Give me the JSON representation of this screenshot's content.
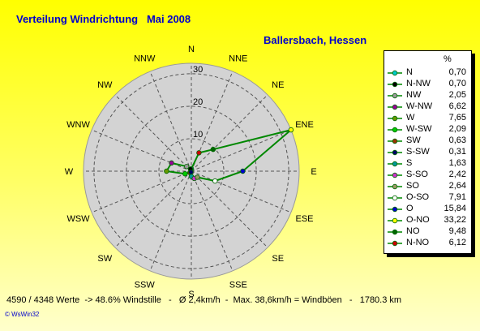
{
  "header": {
    "title": "Verteilung Windrichtung   Mai 2008",
    "location": "Ballersbach, Hessen"
  },
  "chart_data": {
    "type": "radar",
    "title": "Verteilung Windrichtung   Mai 2008",
    "subtitle": "Ballersbach, Hessen",
    "unit": "%",
    "r_ticks": [
      10,
      20,
      30
    ],
    "r_max": 33.22,
    "grid": true,
    "directions": [
      "N",
      "NNE",
      "NE",
      "ENE",
      "E",
      "ESE",
      "SE",
      "SSE",
      "S",
      "SSW",
      "SW",
      "WSW",
      "W",
      "WNW",
      "NW",
      "NNW"
    ],
    "series": [
      {
        "name": "N",
        "value": 0.7,
        "color": "#00cccc",
        "dir": "N"
      },
      {
        "name": "N-NW",
        "value": 0.7,
        "color": "#000000",
        "dir": "NNW"
      },
      {
        "name": "NW",
        "value": 2.05,
        "color": "#999999",
        "dir": "NW"
      },
      {
        "name": "W-NW",
        "value": 6.62,
        "color": "#990099",
        "dir": "WNW"
      },
      {
        "name": "W",
        "value": 7.65,
        "color": "#669900",
        "dir": "W"
      },
      {
        "name": "W-SW",
        "value": 2.09,
        "color": "#00cc00",
        "dir": "WSW"
      },
      {
        "name": "SW",
        "value": 0.63,
        "color": "#993300",
        "dir": "SW"
      },
      {
        "name": "S-SW",
        "value": 0.31,
        "color": "#000066",
        "dir": "SSW"
      },
      {
        "name": "S",
        "value": 1.63,
        "color": "#009999",
        "dir": "S"
      },
      {
        "name": "S-SO",
        "value": 2.42,
        "color": "#cc33cc",
        "dir": "SSE"
      },
      {
        "name": "SO",
        "value": 2.64,
        "color": "#999966",
        "dir": "SE"
      },
      {
        "name": "O-SO",
        "value": 7.91,
        "color": "#ffffff",
        "dir": "ESE"
      },
      {
        "name": "O",
        "value": 15.84,
        "color": "#0000cc",
        "dir": "E"
      },
      {
        "name": "O-NO",
        "value": 33.22,
        "color": "#ffff00",
        "dir": "ENE"
      },
      {
        "name": "NO",
        "value": 9.48,
        "color": "#006600",
        "dir": "NE"
      },
      {
        "name": "N-NO",
        "value": 6.12,
        "color": "#cc0000",
        "dir": "NNE"
      }
    ],
    "line_color": "#008800"
  },
  "legend": {
    "header": "%",
    "values_text": [
      "0,70",
      "0,70",
      "2,05",
      "6,62",
      "7,65",
      "2,09",
      "0,63",
      "0,31",
      "1,63",
      "2,42",
      "2,64",
      "7,91",
      "15,84",
      "33,22",
      "9,48",
      "6,12"
    ]
  },
  "footer": {
    "stats": "4590 / 4348 Werte  -> 48.6% Windstille   -   Ø 2,4km/h  -  Max. 38,6km/h = Windböen   -   1780.3 km",
    "credit": "© WsWin32"
  }
}
